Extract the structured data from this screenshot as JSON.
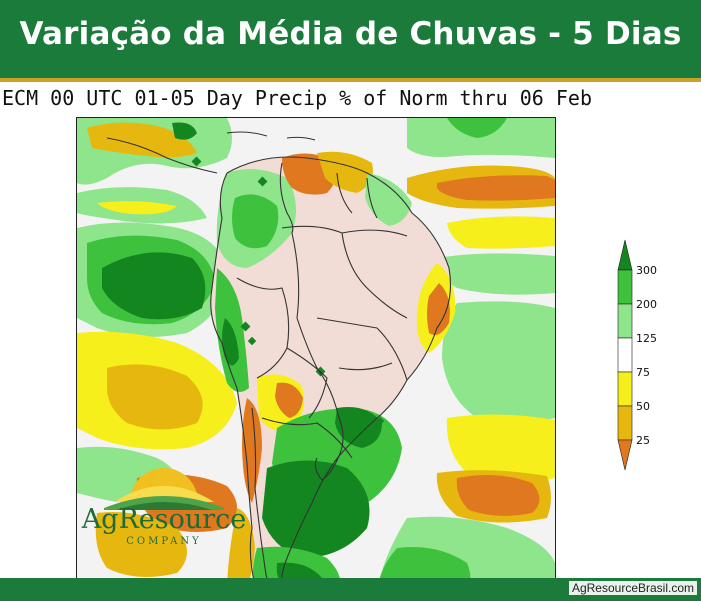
{
  "header": {
    "title": "Variação da Média de Chuvas - 5 Dias"
  },
  "map": {
    "subtitle": "ECM 00 UTC 01-05 Day Precip % of Norm thru 06 Feb",
    "region": "South America",
    "variable": "Precip % of Norm"
  },
  "legend": {
    "levels": [
      "300",
      "200",
      "125",
      "75",
      "50",
      "25"
    ],
    "colors": {
      "300": "#14861f",
      "200": "#3ec23e",
      "125": "#8ee58c",
      "normal": "#ffffff",
      "75": "#f6ef1c",
      "50": "#e6b80f",
      "25": "#e0781f"
    }
  },
  "colors": {
    "banner": "#1b7b3a",
    "banner_accent": "#c9a227",
    "land_dry": "#f2ddd6",
    "ocean": "#f3f3f3",
    "dark_green": "#14861f",
    "medium_green": "#3ec23e",
    "light_green": "#8ee58c",
    "yellow": "#f6ef1c",
    "gold": "#e6b80f",
    "orange": "#e0781f"
  },
  "logo": {
    "name": "AgResource",
    "subname": "COMPANY"
  },
  "footer": {
    "credit": "AgResourceBrasil.com"
  }
}
